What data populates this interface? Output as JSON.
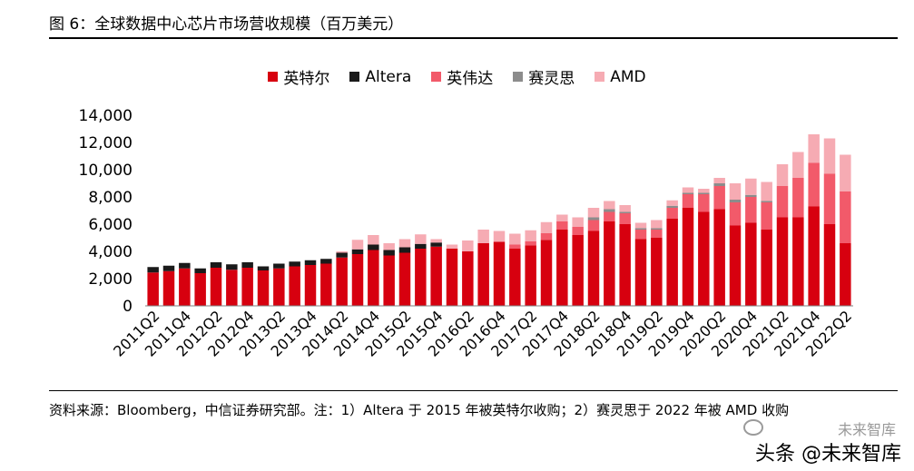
{
  "figure_title": "图 6：全球数据中心芯片市场营收规模（百万美元）",
  "source_text": "资料来源：Bloomberg，中信证券研究部。注：1）Altera 于 2015 年被英特尔收购；2）赛灵思于 2022 年被 AMD 收购",
  "watermark": "未来智库",
  "watermark2": "头条 @未来智库",
  "chart_data": {
    "type": "bar",
    "stacked": true,
    "title": "",
    "xlabel": "",
    "ylabel": "",
    "ylim": [
      0,
      14000
    ],
    "yticks": [
      "0",
      "2,000",
      "4,000",
      "6,000",
      "8,000",
      "10,000",
      "12,000",
      "14,000"
    ],
    "ytick_values": [
      0,
      2000,
      4000,
      6000,
      8000,
      10000,
      12000,
      14000
    ],
    "legend_position": "top-center",
    "categories": [
      "2011Q2",
      "2011Q3",
      "2011Q4",
      "2012Q1",
      "2012Q2",
      "2012Q3",
      "2012Q4",
      "2013Q1",
      "2013Q2",
      "2013Q3",
      "2013Q4",
      "2014Q1",
      "2014Q2",
      "2014Q3",
      "2014Q4",
      "2015Q1",
      "2015Q2",
      "2015Q3",
      "2015Q4",
      "2016Q1",
      "2016Q2",
      "2016Q3",
      "2016Q4",
      "2017Q1",
      "2017Q2",
      "2017Q3",
      "2017Q4",
      "2018Q1",
      "2018Q2",
      "2018Q3",
      "2018Q4",
      "2019Q1",
      "2019Q2",
      "2019Q3",
      "2019Q4",
      "2020Q1",
      "2020Q2",
      "2020Q3",
      "2020Q4",
      "2021Q1",
      "2021Q2",
      "2021Q3",
      "2021Q4",
      "2022Q1",
      "2022Q2"
    ],
    "tick_labels": [
      "2011Q2",
      "2011Q4",
      "2012Q2",
      "2012Q4",
      "2013Q2",
      "2013Q4",
      "2014Q2",
      "2014Q4",
      "2015Q2",
      "2015Q4",
      "2016Q2",
      "2016Q4",
      "2017Q2",
      "2017Q4",
      "2018Q2",
      "2018Q4",
      "2019Q2",
      "2019Q4",
      "2020Q2",
      "2020Q4",
      "2021Q2",
      "2021Q4",
      "2022Q2"
    ],
    "series": [
      {
        "name": "英特尔",
        "color": "#d7000f",
        "values": [
          2450,
          2550,
          2750,
          2400,
          2800,
          2650,
          2800,
          2600,
          2750,
          2900,
          3000,
          3100,
          3550,
          3800,
          4100,
          3700,
          3900,
          4200,
          4350,
          4200,
          4000,
          4600,
          4700,
          4200,
          4450,
          4850,
          5600,
          5200,
          5500,
          6200,
          6000,
          4900,
          5000,
          6400,
          7200,
          6900,
          7100,
          5900,
          6100,
          5600,
          6500,
          6500,
          7300,
          6000,
          4600
        ]
      },
      {
        "name": "Altera",
        "color": "#1a1a1a",
        "values": [
          400,
          400,
          400,
          350,
          400,
          400,
          400,
          300,
          350,
          350,
          350,
          350,
          350,
          350,
          400,
          400,
          400,
          350,
          300,
          0,
          0,
          0,
          0,
          0,
          0,
          0,
          0,
          0,
          0,
          0,
          0,
          0,
          0,
          0,
          0,
          0,
          0,
          0,
          0,
          0,
          0,
          0,
          0,
          0,
          0
        ]
      },
      {
        "name": "英伟达",
        "color": "#f25a6a",
        "values": [
          0,
          0,
          0,
          0,
          0,
          0,
          0,
          0,
          0,
          0,
          0,
          0,
          0,
          0,
          0,
          0,
          0,
          0,
          0,
          0,
          0,
          0,
          0,
          300,
          300,
          500,
          600,
          600,
          800,
          700,
          800,
          700,
          600,
          800,
          1000,
          1300,
          1700,
          1700,
          1900,
          2000,
          2300,
          2900,
          3200,
          3700,
          3800
        ]
      },
      {
        "name": "赛灵思",
        "color": "#8c8c8c",
        "values": [
          0,
          0,
          0,
          0,
          0,
          0,
          0,
          0,
          0,
          0,
          0,
          0,
          0,
          0,
          0,
          0,
          0,
          0,
          0,
          0,
          0,
          0,
          0,
          0,
          0,
          0,
          0,
          0,
          200,
          200,
          100,
          100,
          100,
          150,
          100,
          100,
          200,
          200,
          150,
          100,
          0,
          0,
          0,
          0,
          0
        ]
      },
      {
        "name": "AMD",
        "color": "#f6abb3",
        "values": [
          0,
          0,
          0,
          0,
          0,
          0,
          0,
          0,
          0,
          0,
          0,
          0,
          100,
          700,
          700,
          500,
          600,
          700,
          250,
          300,
          800,
          1000,
          800,
          800,
          800,
          800,
          500,
          700,
          700,
          600,
          500,
          400,
          600,
          400,
          400,
          300,
          400,
          1200,
          1200,
          1400,
          1600,
          1900,
          2100,
          2600,
          2700
        ]
      }
    ]
  }
}
